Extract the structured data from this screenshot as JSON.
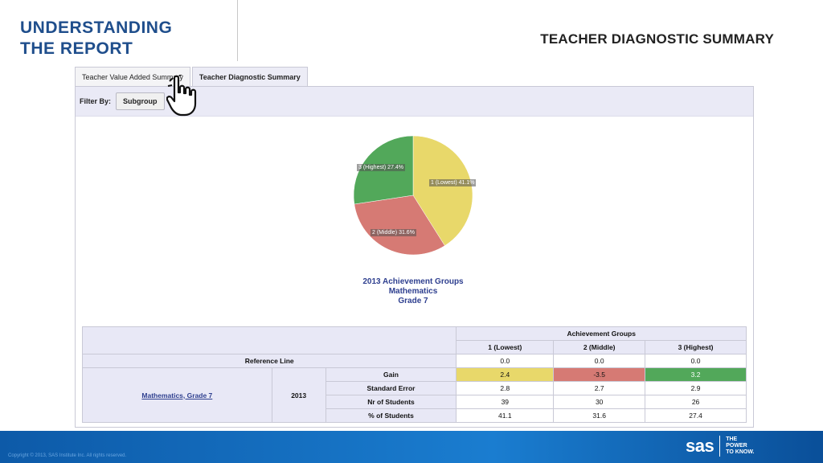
{
  "slide": {
    "title_line1": "UNDERSTANDING",
    "title_line2": "THE REPORT",
    "report_heading": "TEACHER DIAGNOSTIC SUMMARY"
  },
  "tabs": [
    {
      "label": "Teacher Value Added Summary",
      "active": false
    },
    {
      "label": "Teacher Diagnostic Summary",
      "active": true
    }
  ],
  "filter": {
    "label": "Filter By:",
    "button": "Subgroup"
  },
  "chart_data": {
    "type": "pie",
    "slices": [
      {
        "label": "1 (Lowest) 41.1%",
        "value": 41.1,
        "color": "#e8d86a"
      },
      {
        "label": "2 (Middle) 31.6%",
        "value": 31.6,
        "color": "#d67a74"
      },
      {
        "label": "3 (Highest) 27.4%",
        "value": 27.4,
        "color": "#52a85a"
      }
    ],
    "title_lines": [
      "2013 Achievement Groups",
      "Mathematics",
      "Grade 7"
    ]
  },
  "table": {
    "group_header": "Achievement Groups",
    "columns": [
      "1 (Lowest)",
      "2 (Middle)",
      "3 (Highest)"
    ],
    "reference_label": "Reference Line",
    "reference_values": [
      "0.0",
      "0.0",
      "0.0"
    ],
    "subject_link": "Mathematics, Grade 7",
    "year": "2013",
    "rows": [
      {
        "label": "Gain",
        "values": [
          "2.4",
          "-3.5",
          "3.2"
        ]
      },
      {
        "label": "Standard Error",
        "values": [
          "2.8",
          "2.7",
          "2.9"
        ]
      },
      {
        "label": "Nr of Students",
        "values": [
          "39",
          "30",
          "26"
        ]
      },
      {
        "label": "% of Students",
        "values": [
          "41.1",
          "31.6",
          "27.4"
        ]
      }
    ]
  },
  "footer": {
    "copyright": "Copyright © 2013, SAS Institute Inc. All rights reserved.",
    "logo": "sas",
    "tagline_line1": "THE",
    "tagline_line2": "POWER",
    "tagline_line3": "TO KNOW."
  }
}
